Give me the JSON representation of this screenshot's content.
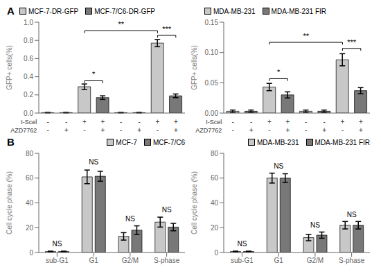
{
  "chart_data": [
    {
      "type": "bar",
      "title": "A",
      "ylabel": "GFP+ cells(%)",
      "legend": "upper left",
      "grid": false,
      "category_rows": [
        "I-Scel",
        "AZD7762"
      ],
      "categories": [
        [
          "-",
          "-"
        ],
        [
          "-",
          "+"
        ],
        [
          "+",
          "-"
        ],
        [
          "+",
          "+"
        ],
        [
          "-",
          "-"
        ],
        [
          "-",
          "+"
        ],
        [
          "+",
          "-"
        ],
        [
          "+",
          "+"
        ]
      ],
      "series": [
        {
          "name": "MCF-7-DR-GFP",
          "color": "#c8c8c8",
          "values": [
            0.005,
            null,
            0.29,
            null,
            0.005,
            null,
            0.77,
            null
          ],
          "errors": [
            0.003,
            null,
            0.03,
            null,
            0.003,
            null,
            0.04,
            null
          ]
        },
        {
          "name": "MCF-7/C6-DR-GFP",
          "color": "#787878",
          "values": [
            null,
            0.005,
            null,
            0.17,
            null,
            0.005,
            null,
            0.19
          ],
          "errors": [
            null,
            0.003,
            null,
            0.02,
            null,
            0.003,
            null,
            0.02
          ]
        }
      ],
      "ylim": [
        0,
        1.0
      ],
      "yticks": [
        {
          "value": 0.0,
          "label": "0.0"
        },
        0.2,
        0.4,
        0.6,
        0.8,
        {
          "value": 1.0,
          "label": "1.0"
        }
      ],
      "annotations": [
        {
          "text": "*",
          "from": 2,
          "to": 3,
          "y": 0.33
        },
        {
          "text": "**",
          "from": 2,
          "to": 6,
          "y": 0.88
        },
        {
          "text": "***",
          "from": 6,
          "to": 7,
          "y": 0.83
        }
      ]
    },
    {
      "type": "bar",
      "ylabel": "GFP+ cells(%)",
      "legend": "upper left",
      "grid": false,
      "category_rows": [
        "I-Scel",
        "AZD7762"
      ],
      "categories": [
        [
          "-",
          "-"
        ],
        [
          "-",
          "+"
        ],
        [
          "+",
          "-"
        ],
        [
          "+",
          "+"
        ],
        [
          "-",
          "-"
        ],
        [
          "-",
          "+"
        ],
        [
          "+",
          "-"
        ],
        [
          "+",
          "+"
        ]
      ],
      "series": [
        {
          "name": "MDA-MB-231",
          "color": "#c8c8c8",
          "values": [
            0.003,
            null,
            0.043,
            null,
            0.003,
            null,
            0.088,
            null
          ],
          "errors": [
            0.002,
            null,
            0.006,
            null,
            0.002,
            null,
            0.01,
            null
          ]
        },
        {
          "name": "MDA-MB-231 FIR",
          "color": "#787878",
          "values": [
            null,
            0.003,
            null,
            0.03,
            null,
            0.003,
            null,
            0.037
          ],
          "errors": [
            null,
            0.002,
            null,
            0.005,
            null,
            0.002,
            null,
            0.005
          ]
        }
      ],
      "ylim": [
        0,
        0.15
      ],
      "yticks": [
        {
          "value": 0.0,
          "label": "0.00"
        },
        0.05,
        {
          "value": 0.1,
          "label": "0.10"
        },
        0.15
      ],
      "annotations": [
        {
          "text": "*",
          "from": 2,
          "to": 3,
          "y": 0.053
        },
        {
          "text": "**",
          "from": 2,
          "to": 6,
          "y": 0.113
        },
        {
          "text": "***",
          "from": 6,
          "to": 7,
          "y": 0.103
        }
      ]
    },
    {
      "type": "bar",
      "title": "B",
      "ylabel": "Cell cycle phase (%)",
      "legend": "upper right",
      "grid": false,
      "categories": [
        "sub-G1",
        "G1",
        "G2/M",
        "S-phase"
      ],
      "series": [
        {
          "name": "MCF-7",
          "color": "#c8c8c8",
          "values": [
            0.8,
            61.0,
            13.0,
            24.5
          ],
          "errors": [
            0.3,
            5.5,
            3.0,
            4.0
          ]
        },
        {
          "name": "MCF-7/C6",
          "color": "#787878",
          "values": [
            0.8,
            61.5,
            18.0,
            20.5
          ],
          "errors": [
            0.3,
            4.0,
            3.5,
            3.0
          ]
        }
      ],
      "ylim": [
        0,
        80
      ],
      "yticks": [
        0,
        20,
        40,
        60,
        80
      ],
      "annotations": [
        {
          "text": "NS",
          "x": "sub-G1",
          "y": 2.1
        },
        {
          "text": "NS",
          "x": "G1",
          "y": 68.0
        },
        {
          "text": "NS",
          "x": "G2/M",
          "y": 22.5
        },
        {
          "text": "NS",
          "x": "S-phase",
          "y": 29.5
        }
      ]
    },
    {
      "type": "bar",
      "ylabel": "Cell cycle phase (%)",
      "legend": "upper right",
      "grid": false,
      "categories": [
        "sub-G1",
        "G1",
        "G2/M",
        "S-phase"
      ],
      "series": [
        {
          "name": "MDA-MB-231",
          "color": "#c8c8c8",
          "values": [
            0.8,
            60.0,
            12.0,
            22.0
          ],
          "errors": [
            0.3,
            4.0,
            2.5,
            3.0
          ]
        },
        {
          "name": "MDA-MB-231 FIR",
          "color": "#787878",
          "values": [
            0.8,
            60.0,
            14.0,
            22.0
          ],
          "errors": [
            0.3,
            3.5,
            2.5,
            3.0
          ]
        }
      ],
      "ylim": [
        0,
        80
      ],
      "yticks": [
        0,
        20,
        40,
        60,
        80
      ],
      "annotations": [
        {
          "text": "NS",
          "x": "sub-G1",
          "y": 2.1
        },
        {
          "text": "NS",
          "x": "G1",
          "y": 65.0
        },
        {
          "text": "NS",
          "x": "G2/M",
          "y": 17.5
        },
        {
          "text": "NS",
          "x": "S-phase",
          "y": 26.0
        }
      ]
    }
  ]
}
